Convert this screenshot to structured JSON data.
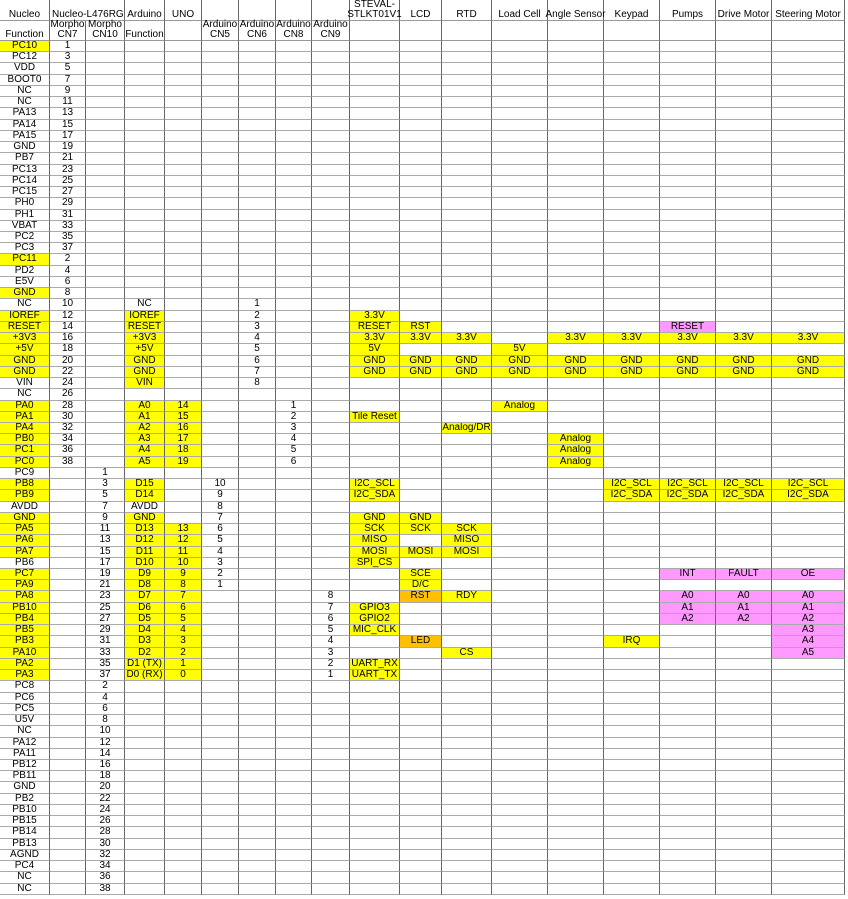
{
  "colors": {
    "highlight": "#ffff00",
    "pink": "#ff99ff",
    "orange": "#ffc000"
  },
  "header": {
    "row1": [
      "Nucleo",
      "Nucleo-L476RG",
      "",
      "Arduino",
      "UNO",
      "",
      "",
      "",
      "",
      "STEVAL-\nSTLKT01V1",
      "LCD",
      "RTD",
      "Load Cell",
      "Angle Sensor",
      "Keypad",
      "Pumps",
      "Drive Motor",
      "Steering Motor"
    ],
    "row2": [
      "Function",
      "Morpho\nCN7",
      "Morpho\nCN10",
      "Function",
      "",
      "Arduino\nCN5",
      "Arduino\nCN6",
      "Arduino\nCN8",
      "Arduino\nCN9",
      "",
      "",
      "",
      "",
      "",
      "",
      "",
      "",
      ""
    ]
  },
  "rows": [
    {
      "c": [
        "PC10",
        "1"
      ],
      "h": 1
    },
    {
      "c": [
        "PC12",
        "3"
      ]
    },
    {
      "c": [
        "VDD",
        "5"
      ]
    },
    {
      "c": [
        "BOOT0",
        "7"
      ]
    },
    {
      "c": [
        "NC",
        "9"
      ]
    },
    {
      "c": [
        "NC",
        "11"
      ]
    },
    {
      "c": [
        "PA13",
        "13"
      ]
    },
    {
      "c": [
        "PA14",
        "15"
      ]
    },
    {
      "c": [
        "PA15",
        "17"
      ]
    },
    {
      "c": [
        "GND",
        "19"
      ]
    },
    {
      "c": [
        "PB7",
        "21"
      ]
    },
    {
      "c": [
        "PC13",
        "23"
      ]
    },
    {
      "c": [
        "PC14",
        "25"
      ]
    },
    {
      "c": [
        "PC15",
        "27"
      ]
    },
    {
      "c": [
        "PH0",
        "29"
      ]
    },
    {
      "c": [
        "PH1",
        "31"
      ]
    },
    {
      "c": [
        "VBAT",
        "33"
      ]
    },
    {
      "c": [
        "PC2",
        "35"
      ]
    },
    {
      "c": [
        "PC3",
        "37"
      ]
    },
    {
      "c": [
        "PC11",
        "2"
      ],
      "h": 1
    },
    {
      "c": [
        "PD2",
        "4"
      ]
    },
    {
      "c": [
        "E5V",
        "6"
      ]
    },
    {
      "c": [
        "GND",
        "8"
      ],
      "h": 1
    },
    {
      "c": [
        "NC",
        "10",
        "",
        "NC",
        "",
        "",
        "1"
      ],
      "nh": [
        3
      ]
    },
    {
      "c": [
        "IOREF",
        "12",
        "",
        "IOREF",
        "",
        "",
        "2",
        "",
        "",
        "3.3V"
      ],
      "h": 1
    },
    {
      "c": [
        "RESET",
        "14",
        "",
        "RESET",
        "",
        "",
        "3",
        "",
        "",
        "RESET",
        "RST",
        "",
        "",
        "",
        "",
        "RESET"
      ],
      "h": 1,
      "pk": [
        15
      ]
    },
    {
      "c": [
        "+3V3",
        "16",
        "",
        "+3V3",
        "",
        "",
        "4",
        "",
        "",
        "3.3V",
        "3.3V",
        "3.3V",
        "",
        "3.3V",
        "3.3V",
        "3.3V",
        "3.3V",
        "3.3V"
      ],
      "h": 1
    },
    {
      "c": [
        "+5V",
        "18",
        "",
        "+5V",
        "",
        "",
        "5",
        "",
        "",
        "5V",
        "",
        "",
        "5V"
      ],
      "h": 1
    },
    {
      "c": [
        "GND",
        "20",
        "",
        "GND",
        "",
        "",
        "6",
        "",
        "",
        "GND",
        "GND",
        "GND",
        "GND",
        "GND",
        "GND",
        "GND",
        "GND",
        "GND"
      ],
      "h": 1
    },
    {
      "c": [
        "GND",
        "22",
        "",
        "GND",
        "",
        "",
        "7",
        "",
        "",
        "GND",
        "GND",
        "GND",
        "GND",
        "GND",
        "GND",
        "GND",
        "GND",
        "GND"
      ],
      "h": 1
    },
    {
      "c": [
        "VIN",
        "24",
        "",
        "VIN",
        "",
        "",
        "8"
      ]
    },
    {
      "c": [
        "NC",
        "26"
      ]
    },
    {
      "c": [
        "PA0",
        "28",
        "",
        "A0",
        "14",
        "",
        "",
        "1",
        "",
        "",
        "",
        "",
        "Analog"
      ],
      "h": 1
    },
    {
      "c": [
        "PA1",
        "30",
        "",
        "A1",
        "15",
        "",
        "",
        "2",
        "",
        "Tile Reset"
      ],
      "h": 1
    },
    {
      "c": [
        "PA4",
        "32",
        "",
        "A2",
        "16",
        "",
        "",
        "3",
        "",
        "",
        "",
        "Analog/DR"
      ],
      "h": 1
    },
    {
      "c": [
        "PB0",
        "34",
        "",
        "A3",
        "17",
        "",
        "",
        "4",
        "",
        "",
        "",
        "",
        "",
        "Analog"
      ],
      "h": 1
    },
    {
      "c": [
        "PC1",
        "36",
        "",
        "A4",
        "18",
        "",
        "",
        "5",
        "",
        "",
        "",
        "",
        "",
        "Analog"
      ],
      "h": 1
    },
    {
      "c": [
        "PC0",
        "38",
        "",
        "A5",
        "19",
        "",
        "",
        "6",
        "",
        "",
        "",
        "",
        "",
        "Analog"
      ],
      "h": 1
    },
    {
      "c": [
        "PC9",
        "",
        "1"
      ]
    },
    {
      "c": [
        "PB8",
        "",
        "3",
        "D15",
        "",
        "10",
        "",
        "",
        "",
        "I2C_SCL",
        "",
        "",
        "",
        "",
        "I2C_SCL",
        "I2C_SCL",
        "I2C_SCL",
        "I2C_SCL"
      ],
      "h": 1
    },
    {
      "c": [
        "PB9",
        "",
        "5",
        "D14",
        "",
        "9",
        "",
        "",
        "",
        "I2C_SDA",
        "",
        "",
        "",
        "",
        "I2C_SDA",
        "I2C_SDA",
        "I2C_SDA",
        "I2C_SDA"
      ],
      "h": 1
    },
    {
      "c": [
        "AVDD",
        "",
        "7",
        "AVDD",
        "",
        "8"
      ],
      "nh": [
        3
      ]
    },
    {
      "c": [
        "GND",
        "",
        "9",
        "GND",
        "",
        "7",
        "",
        "",
        "",
        "GND",
        "GND"
      ],
      "h": 1
    },
    {
      "c": [
        "PA5",
        "",
        "11",
        "D13",
        "13",
        "6",
        "",
        "",
        "",
        "SCK",
        "SCK",
        "SCK"
      ],
      "h": 1
    },
    {
      "c": [
        "PA6",
        "",
        "13",
        "D12",
        "12",
        "5",
        "",
        "",
        "",
        "MISO",
        "",
        "MISO"
      ],
      "h": 1
    },
    {
      "c": [
        "PA7",
        "",
        "15",
        "D11",
        "11",
        "4",
        "",
        "",
        "",
        "MOSI",
        "MOSI",
        "MOSI"
      ],
      "h": 1
    },
    {
      "c": [
        "PB6",
        "",
        "17",
        "D10",
        "10",
        "3",
        "",
        "",
        "",
        "SPI_CS"
      ]
    },
    {
      "c": [
        "PC7",
        "",
        "19",
        "D9",
        "9",
        "2",
        "",
        "",
        "",
        "",
        "SCE",
        "",
        "",
        "",
        "",
        "INT",
        "FAULT",
        "OE"
      ],
      "h": 1,
      "pk": [
        15,
        16,
        17
      ]
    },
    {
      "c": [
        "PA9",
        "",
        "21",
        "D8",
        "8",
        "1",
        "",
        "",
        "",
        "",
        "D/C"
      ],
      "h": 1
    },
    {
      "c": [
        "PA8",
        "",
        "23",
        "D7",
        "7",
        "",
        "",
        "",
        "8",
        "",
        "RST",
        "RDY",
        "",
        "",
        "",
        "A0",
        "A0",
        "A0"
      ],
      "h": 1,
      "or": [
        10
      ],
      "pk": [
        15,
        16,
        17
      ]
    },
    {
      "c": [
        "PB10",
        "",
        "25",
        "D6",
        "6",
        "",
        "",
        "",
        "7",
        "GPIO3",
        "",
        "",
        "",
        "",
        "",
        "A1",
        "A1",
        "A1"
      ],
      "h": 1,
      "pk": [
        15,
        16,
        17
      ]
    },
    {
      "c": [
        "PB4",
        "",
        "27",
        "D5",
        "5",
        "",
        "",
        "",
        "6",
        "GPIO2",
        "",
        "",
        "",
        "",
        "",
        "A2",
        "A2",
        "A2"
      ],
      "h": 1,
      "pk": [
        15,
        16,
        17
      ]
    },
    {
      "c": [
        "PB5",
        "",
        "29",
        "D4",
        "4",
        "",
        "",
        "",
        "5",
        "MIC_CLK",
        "",
        "",
        "",
        "",
        "",
        "",
        "",
        "A3"
      ],
      "h": 1,
      "pk": [
        17
      ]
    },
    {
      "c": [
        "PB3",
        "",
        "31",
        "D3",
        "3",
        "",
        "",
        "",
        "4",
        "",
        "LED",
        "",
        "",
        "",
        "IRQ",
        "",
        "",
        "A4"
      ],
      "h": 1,
      "or": [
        10
      ],
      "pk": [
        17
      ]
    },
    {
      "c": [
        "PA10",
        "",
        "33",
        "D2",
        "2",
        "",
        "",
        "",
        "3",
        "",
        "",
        "CS",
        "",
        "",
        "",
        "",
        "",
        "A5"
      ],
      "h": 1,
      "pk": [
        17
      ]
    },
    {
      "c": [
        "PA2",
        "",
        "35",
        "D1 (TX)",
        "1",
        "",
        "",
        "",
        "2",
        "UART_RX"
      ],
      "h": 1
    },
    {
      "c": [
        "PA3",
        "",
        "37",
        "D0 (RX)",
        "0",
        "",
        "",
        "",
        "1",
        "UART_TX"
      ],
      "h": 1
    },
    {
      "c": [
        "PC8",
        "",
        "2"
      ]
    },
    {
      "c": [
        "PC6",
        "",
        "4"
      ]
    },
    {
      "c": [
        "PC5",
        "",
        "6"
      ]
    },
    {
      "c": [
        "U5V",
        "",
        "8"
      ]
    },
    {
      "c": [
        "NC",
        "",
        "10"
      ]
    },
    {
      "c": [
        "PA12",
        "",
        "12"
      ]
    },
    {
      "c": [
        "PA11",
        "",
        "14"
      ]
    },
    {
      "c": [
        "PB12",
        "",
        "16"
      ]
    },
    {
      "c": [
        "PB11",
        "",
        "18"
      ]
    },
    {
      "c": [
        "GND",
        "",
        "20"
      ]
    },
    {
      "c": [
        "PB2",
        "",
        "22"
      ]
    },
    {
      "c": [
        "PB10",
        "",
        "24"
      ]
    },
    {
      "c": [
        "PB15",
        "",
        "26"
      ]
    },
    {
      "c": [
        "PB14",
        "",
        "28"
      ]
    },
    {
      "c": [
        "PB13",
        "",
        "30"
      ]
    },
    {
      "c": [
        "AGND",
        "",
        "32"
      ]
    },
    {
      "c": [
        "PC4",
        "",
        "34"
      ]
    },
    {
      "c": [
        "NC",
        "",
        "36"
      ]
    },
    {
      "c": [
        "NC",
        "",
        "38"
      ]
    }
  ]
}
